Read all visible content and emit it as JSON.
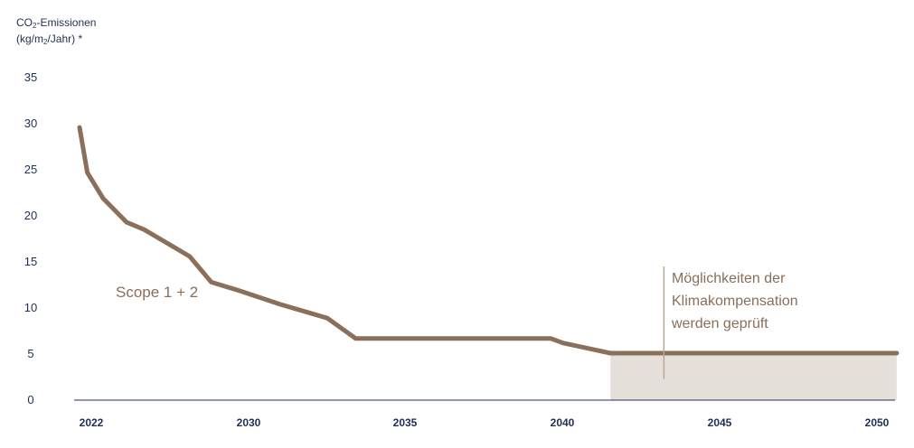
{
  "chart_data": {
    "type": "line",
    "ylabel_parts": [
      "CO",
      "2",
      "-Emissionen",
      "(kg/m",
      "2",
      "/Jahr) *"
    ],
    "yticks": [
      0,
      5,
      10,
      15,
      20,
      25,
      30,
      35
    ],
    "ylim": [
      0,
      35
    ],
    "xticks": [
      2022,
      2030,
      2035,
      2040,
      2045,
      2050
    ],
    "x_tick_labels": [
      "2022",
      "2030",
      "2035",
      "2040",
      "2045",
      "2050"
    ],
    "series": [
      {
        "label": "Scope 1 + 2",
        "x": [
          2021.4,
          2021.8,
          2022.6,
          2023.8,
          2024.7,
          2027.0,
          2028.1,
          2029.5,
          2031.0,
          2032.5,
          2033.4,
          2037.2,
          2038.2,
          2039.6,
          2040.0,
          2041.5,
          2050.6
        ],
        "y": [
          29.6,
          24.7,
          21.9,
          19.3,
          18.5,
          15.6,
          12.8,
          11.9,
          10.4,
          8.9,
          6.7,
          6.7,
          6.7,
          6.7,
          6.2,
          5.1,
          5.1
        ],
        "color": "#8a6f5a"
      }
    ],
    "shaded_region": {
      "x_start": 2041.5,
      "x_end": 2050.6,
      "y_from": 0,
      "y_to": 5.1,
      "color": "#e6e0da"
    },
    "annotation": {
      "lines": [
        "Möglichkeiten der",
        "Klimakompensation",
        "werden geprüft"
      ],
      "marker_x": 2043.2,
      "marker_y_from": 2.3,
      "marker_y_to": 14.5
    },
    "grid": false,
    "colors": {
      "axis_text": "#1f2f55",
      "line": "#8a6f5a",
      "shade": "#e6e0da",
      "baseline": "#1f2f55"
    }
  }
}
